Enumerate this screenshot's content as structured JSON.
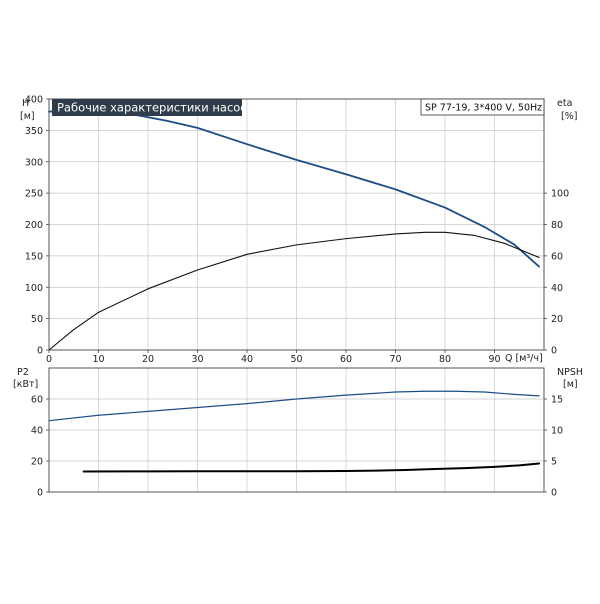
{
  "chart_data": [
    {
      "type": "line",
      "title": "Рабочие характеристики насоса",
      "subtitle": "SP 77-19, 3*400 V, 50Hz",
      "xlabel": "Q [м³/ч]",
      "ylabel_left": "H",
      "ylabel_left_unit": "[м]",
      "ylabel_right": "eta",
      "ylabel_right_unit": "[%]",
      "xlim": [
        0,
        100
      ],
      "x_ticks": [
        0,
        10,
        20,
        30,
        40,
        50,
        60,
        70,
        80,
        90
      ],
      "ylim_left": [
        0,
        400
      ],
      "y_ticks_left": [
        0,
        50,
        100,
        150,
        200,
        250,
        300,
        350,
        400
      ],
      "ylim_right": [
        0,
        160
      ],
      "y_ticks_right": [
        0,
        20,
        40,
        60,
        80,
        100
      ],
      "grid": true,
      "series": [
        {
          "axis": "left",
          "color": "#1c4e86",
          "x": [
            0,
            7,
            12,
            18,
            24,
            30,
            40,
            50,
            60,
            70,
            80,
            88,
            94,
            99
          ],
          "y": [
            380,
            381,
            380,
            374,
            365,
            354,
            328,
            303,
            280,
            256,
            227,
            196,
            168,
            133
          ]
        },
        {
          "axis": "right",
          "color": "#111111",
          "x": [
            0,
            5,
            10,
            20,
            30,
            40,
            50,
            60,
            70,
            76,
            80,
            86,
            92,
            99
          ],
          "y": [
            0,
            13,
            24,
            39,
            51,
            61,
            67,
            71,
            74,
            75,
            75,
            73,
            68,
            59
          ]
        }
      ]
    },
    {
      "type": "line",
      "ylabel_left": "P2",
      "ylabel_left_unit": "[кВт]",
      "ylabel_right": "NPSH",
      "ylabel_right_unit": "[м]",
      "xlim": [
        0,
        100
      ],
      "ylim_left": [
        0,
        80
      ],
      "y_ticks_left": [
        0,
        20,
        40,
        60
      ],
      "ylim_right": [
        0,
        20
      ],
      "y_ticks_right": [
        0,
        5,
        10,
        15
      ],
      "grid": true,
      "series": [
        {
          "axis": "left",
          "color": "#1c4e86",
          "x": [
            0,
            10,
            20,
            30,
            40,
            50,
            60,
            70,
            76,
            82,
            88,
            94,
            99
          ],
          "y": [
            46,
            49.5,
            52,
            54.5,
            57,
            60,
            62.5,
            64.5,
            65,
            65,
            64.5,
            63,
            62
          ]
        },
        {
          "axis": "right",
          "color": "#000000",
          "x": [
            7,
            20,
            30,
            40,
            50,
            60,
            66,
            72,
            78,
            84,
            90,
            95,
            99
          ],
          "y": [
            3.3,
            3.33,
            3.35,
            3.35,
            3.35,
            3.38,
            3.45,
            3.55,
            3.7,
            3.85,
            4.05,
            4.3,
            4.6
          ]
        }
      ]
    }
  ]
}
